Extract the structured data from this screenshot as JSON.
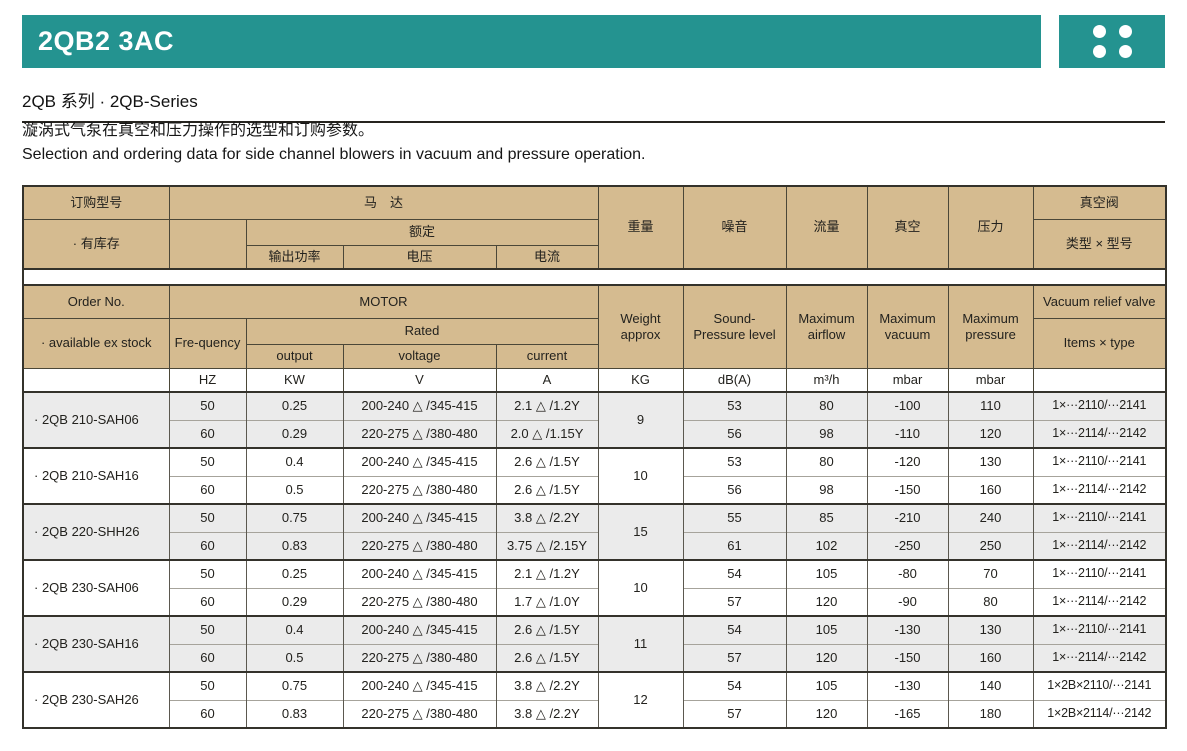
{
  "page": {
    "title": "2QB2 3AC",
    "series_line": "2QB 系列 · 2QB-Series",
    "desc_zh": "漩涡式气泵在真空和压力操作的选型和订购参数。",
    "desc_en": "Selection and ordering data for side channel blowers in vacuum and pressure operation."
  },
  "colors": {
    "accent_teal": "#249390",
    "header_tan": "#d5bb90",
    "row_shade": "#ebebeb"
  },
  "icons": {
    "dots_grid": "four-white-dots-2x2"
  },
  "table": {
    "header_zh": {
      "order": "订购型号",
      "stock": "· 有库存",
      "motor": "马　达",
      "rated": "额定",
      "output": "输出功率",
      "voltage": "电压",
      "current": "电流",
      "weight": "重量",
      "noise": "噪音",
      "flow": "流量",
      "vacuum": "真空",
      "pressure": "压力",
      "valve": "真空阀",
      "valve_sub": "类型 × 型号"
    },
    "header_en": {
      "order": "Order No.",
      "stock": "· available ex stock",
      "motor": "MOTOR",
      "frequency": "Fre-quency",
      "rated": "Rated",
      "output": "output",
      "voltage": "voltage",
      "current": "current",
      "weight": "Weight approx",
      "noise": "Sound- Pressure level",
      "flow": "Maximum airflow",
      "vacuum": "Maximum vacuum",
      "pressure": "Maximum pressure",
      "valve": "Vacuum relief valve",
      "valve_sub": "Items × type"
    },
    "units": [
      "HZ",
      "KW",
      "V",
      "A",
      "KG",
      "dB(A)",
      "m³/h",
      "mbar",
      "mbar",
      ""
    ],
    "groups": [
      {
        "model": "· 2QB 210-SAH06",
        "weight": "9",
        "shaded": true,
        "rows": [
          {
            "hz": "50",
            "kw": "0.25",
            "v": "200-240 △ /345-415",
            "a": "2.1 △ /1.2Y",
            "db": "53",
            "flow": "80",
            "vac": "-100",
            "press": "110",
            "valve": "1×···2110/···2141"
          },
          {
            "hz": "60",
            "kw": "0.29",
            "v": "220-275 △ /380-480",
            "a": "2.0 △ /1.15Y",
            "db": "56",
            "flow": "98",
            "vac": "-110",
            "press": "120",
            "valve": "1×···2114/···2142"
          }
        ]
      },
      {
        "model": "· 2QB 210-SAH16",
        "weight": "10",
        "shaded": false,
        "rows": [
          {
            "hz": "50",
            "kw": "0.4",
            "v": "200-240 △ /345-415",
            "a": "2.6 △ /1.5Y",
            "db": "53",
            "flow": "80",
            "vac": "-120",
            "press": "130",
            "valve": "1×···2110/···2141"
          },
          {
            "hz": "60",
            "kw": "0.5",
            "v": "220-275 △ /380-480",
            "a": "2.6 △ /1.5Y",
            "db": "56",
            "flow": "98",
            "vac": "-150",
            "press": "160",
            "valve": "1×···2114/···2142"
          }
        ]
      },
      {
        "model": "· 2QB 220-SHH26",
        "weight": "15",
        "shaded": true,
        "rows": [
          {
            "hz": "50",
            "kw": "0.75",
            "v": "200-240 △ /345-415",
            "a": "3.8 △ /2.2Y",
            "db": "55",
            "flow": "85",
            "vac": "-210",
            "press": "240",
            "valve": "1×···2110/···2141"
          },
          {
            "hz": "60",
            "kw": "0.83",
            "v": "220-275 △ /380-480",
            "a": "3.75 △ /2.15Y",
            "db": "61",
            "flow": "102",
            "vac": "-250",
            "press": "250",
            "valve": "1×···2114/···2142"
          }
        ]
      },
      {
        "model": "· 2QB 230-SAH06",
        "weight": "10",
        "shaded": false,
        "rows": [
          {
            "hz": "50",
            "kw": "0.25",
            "v": "200-240 △ /345-415",
            "a": "2.1 △ /1.2Y",
            "db": "54",
            "flow": "105",
            "vac": "-80",
            "press": "70",
            "valve": "1×···2110/···2141"
          },
          {
            "hz": "60",
            "kw": "0.29",
            "v": "220-275 △ /380-480",
            "a": "1.7 △ /1.0Y",
            "db": "57",
            "flow": "120",
            "vac": "-90",
            "press": "80",
            "valve": "1×···2114/···2142"
          }
        ]
      },
      {
        "model": "· 2QB 230-SAH16",
        "weight": "11",
        "shaded": true,
        "rows": [
          {
            "hz": "50",
            "kw": "0.4",
            "v": "200-240 △ /345-415",
            "a": "2.6 △ /1.5Y",
            "db": "54",
            "flow": "105",
            "vac": "-130",
            "press": "130",
            "valve": "1×···2110/···2141"
          },
          {
            "hz": "60",
            "kw": "0.5",
            "v": "220-275 △ /380-480",
            "a": "2.6 △ /1.5Y",
            "db": "57",
            "flow": "120",
            "vac": "-150",
            "press": "160",
            "valve": "1×···2114/···2142"
          }
        ]
      },
      {
        "model": "· 2QB 230-SAH26",
        "weight": "12",
        "shaded": false,
        "rows": [
          {
            "hz": "50",
            "kw": "0.75",
            "v": "200-240 △ /345-415",
            "a": "3.8 △ /2.2Y",
            "db": "54",
            "flow": "105",
            "vac": "-130",
            "press": "140",
            "valve": "1×2B×2110/···2141"
          },
          {
            "hz": "60",
            "kw": "0.83",
            "v": "220-275 △ /380-480",
            "a": "3.8 △ /2.2Y",
            "db": "57",
            "flow": "120",
            "vac": "-165",
            "press": "180",
            "valve": "1×2B×2114/···2142"
          }
        ]
      }
    ]
  }
}
